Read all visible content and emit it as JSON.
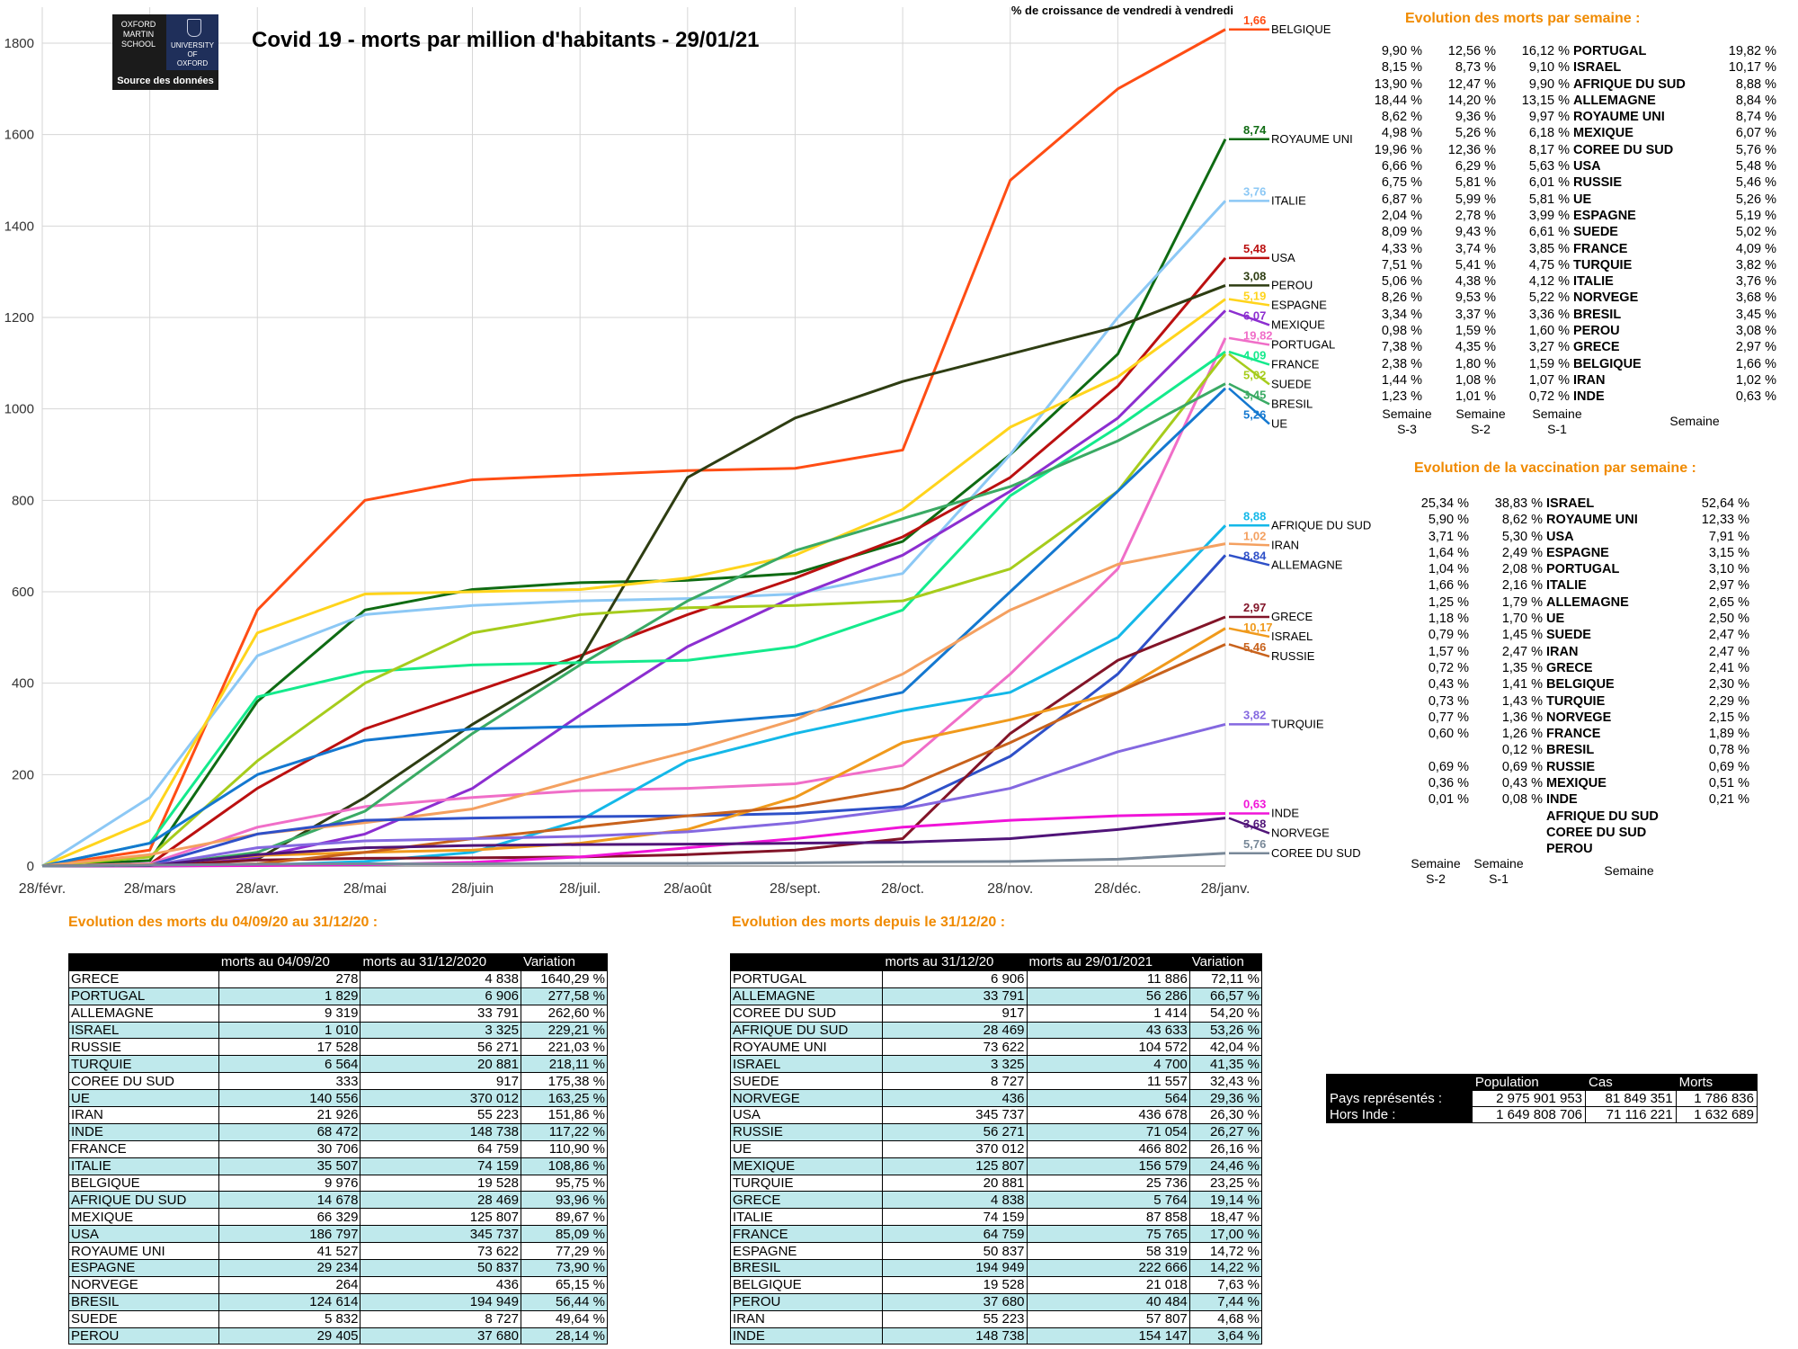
{
  "chart_data": {
    "type": "line",
    "title": "Covid 19 - morts par million d'habitants - 29/01/21",
    "corner_note": "% de croissance de vendredi à vendredi",
    "x_ticks": [
      "28/févr.",
      "28/mars",
      "28/avr.",
      "28/mai",
      "28/juin",
      "28/juil.",
      "28/août",
      "28/sept.",
      "28/oct.",
      "28/nov.",
      "28/déc.",
      "28/janv."
    ],
    "ylim": [
      0,
      1800
    ],
    "y_ticks": [
      0,
      200,
      400,
      600,
      800,
      1000,
      1200,
      1400,
      1600,
      1800
    ],
    "grid": true,
    "series": [
      {
        "name": "BELGIQUE",
        "pct": "1,66",
        "color": "#ff4d14",
        "values": [
          0,
          35,
          560,
          800,
          845,
          855,
          865,
          870,
          910,
          1500,
          1700,
          1830
        ]
      },
      {
        "name": "ROYAUME UNI",
        "pct": "8,74",
        "color": "#0f6b13",
        "values": [
          0,
          12,
          360,
          560,
          605,
          620,
          625,
          640,
          710,
          900,
          1120,
          1590
        ]
      },
      {
        "name": "ITALIE",
        "pct": "3,76",
        "color": "#8cc8f5",
        "values": [
          0,
          150,
          460,
          550,
          570,
          580,
          585,
          595,
          640,
          900,
          1200,
          1455
        ]
      },
      {
        "name": "USA",
        "pct": "5,48",
        "color": "#bb1010",
        "values": [
          0,
          4,
          170,
          300,
          380,
          460,
          550,
          630,
          720,
          850,
          1050,
          1330
        ]
      },
      {
        "name": "PEROU",
        "pct": "3,08",
        "color": "#2e3d12",
        "values": [
          0,
          0,
          15,
          150,
          310,
          450,
          850,
          980,
          1060,
          1120,
          1180,
          1270
        ]
      },
      {
        "name": "ESPAGNE",
        "pct": "5,19",
        "color": "#ffd41c",
        "values": [
          0,
          100,
          510,
          595,
          600,
          605,
          630,
          680,
          780,
          960,
          1070,
          1240
        ]
      },
      {
        "name": "MEXIQUE",
        "pct": "6,07",
        "color": "#8c2ed0",
        "values": [
          0,
          0,
          20,
          70,
          170,
          330,
          480,
          590,
          680,
          820,
          980,
          1215
        ]
      },
      {
        "name": "PORTUGAL",
        "pct": "19,82",
        "color": "#f06ec8",
        "values": [
          0,
          5,
          85,
          130,
          150,
          165,
          170,
          180,
          220,
          420,
          650,
          1155
        ]
      },
      {
        "name": "FRANCE",
        "pct": "4,09",
        "color": "#14ea8c",
        "values": [
          0,
          50,
          370,
          425,
          440,
          445,
          450,
          480,
          560,
          810,
          960,
          1125
        ]
      },
      {
        "name": "SUEDE",
        "pct": "5,02",
        "color": "#a6cc1c",
        "values": [
          0,
          20,
          230,
          400,
          510,
          550,
          565,
          570,
          580,
          650,
          820,
          1120
        ]
      },
      {
        "name": "BRESIL",
        "pct": "3,45",
        "color": "#3aaa64",
        "values": [
          0,
          0,
          30,
          120,
          290,
          440,
          580,
          690,
          760,
          830,
          930,
          1055
        ]
      },
      {
        "name": "UE",
        "pct": "5,26",
        "color": "#1478d0",
        "values": [
          0,
          50,
          200,
          275,
          300,
          305,
          310,
          330,
          380,
          600,
          820,
          1045
        ]
      },
      {
        "name": "AFRIQUE DU SUD",
        "pct": "8,88",
        "color": "#14b8e8",
        "values": [
          0,
          0,
          2,
          10,
          30,
          100,
          230,
          290,
          340,
          380,
          500,
          745
        ]
      },
      {
        "name": "IRAN",
        "pct": "1,02",
        "color": "#f4a060",
        "values": [
          0,
          25,
          70,
          95,
          125,
          190,
          250,
          320,
          420,
          560,
          660,
          705
        ]
      },
      {
        "name": "ALLEMAGNE",
        "pct": "8,84",
        "color": "#2e50c8",
        "values": [
          0,
          2,
          70,
          100,
          105,
          108,
          110,
          115,
          130,
          240,
          420,
          680
        ]
      },
      {
        "name": "GRECE",
        "pct": "2,97",
        "color": "#821428",
        "values": [
          0,
          1,
          13,
          17,
          18,
          20,
          25,
          35,
          60,
          290,
          450,
          545
        ]
      },
      {
        "name": "ISRAEL",
        "pct": "10,17",
        "color": "#f09a1c",
        "values": [
          0,
          3,
          23,
          30,
          35,
          50,
          80,
          150,
          270,
          320,
          380,
          520
        ]
      },
      {
        "name": "RUSSIE",
        "pct": "5,46",
        "color": "#c8621c",
        "values": [
          0,
          0,
          5,
          30,
          60,
          85,
          110,
          130,
          170,
          270,
          380,
          485
        ]
      },
      {
        "name": "TURQUIE",
        "pct": "3,82",
        "color": "#8468e0",
        "values": [
          0,
          1,
          40,
          55,
          60,
          65,
          75,
          95,
          125,
          170,
          250,
          310
        ]
      },
      {
        "name": "INDE",
        "pct": "0,63",
        "color": "#f014d8",
        "values": [
          0,
          0,
          1,
          3,
          8,
          20,
          40,
          60,
          85,
          100,
          110,
          115
        ]
      },
      {
        "name": "NORVEGE",
        "pct": "3,68",
        "color": "#501478",
        "values": [
          0,
          1,
          25,
          40,
          45,
          47,
          48,
          50,
          52,
          60,
          80,
          105
        ]
      },
      {
        "name": "COREE DU SUD",
        "pct": "5,76",
        "color": "#788898",
        "values": [
          0,
          2,
          4,
          5,
          5,
          6,
          6,
          7,
          9,
          10,
          15,
          28
        ]
      }
    ]
  },
  "logo": {
    "line1": "OXFORD",
    "line2": "MARTIN",
    "line3": "SCHOOL",
    "univ1": "UNIVERSITY OF",
    "univ2": "OXFORD",
    "source": "Source des données"
  },
  "weekly_deaths": {
    "title": "Evolution des morts par semaine :",
    "rows": [
      {
        "s3": "9,90 %",
        "s2": "12,56 %",
        "s1": "16,12 %",
        "name": "PORTUGAL",
        "w": "19,82 %"
      },
      {
        "s3": "8,15 %",
        "s2": "8,73 %",
        "s1": "9,10 %",
        "name": "ISRAEL",
        "w": "10,17 %"
      },
      {
        "s3": "13,90 %",
        "s2": "12,47 %",
        "s1": "9,90 %",
        "name": "AFRIQUE DU SUD",
        "w": "8,88 %"
      },
      {
        "s3": "18,44 %",
        "s2": "14,20 %",
        "s1": "13,15 %",
        "name": "ALLEMAGNE",
        "w": "8,84 %"
      },
      {
        "s3": "8,62 %",
        "s2": "9,36 %",
        "s1": "9,97 %",
        "name": "ROYAUME UNI",
        "w": "8,74 %"
      },
      {
        "s3": "4,98 %",
        "s2": "5,26 %",
        "s1": "6,18 %",
        "name": "MEXIQUE",
        "w": "6,07 %"
      },
      {
        "s3": "19,96 %",
        "s2": "12,36 %",
        "s1": "8,17 %",
        "name": "COREE DU SUD",
        "w": "5,76 %"
      },
      {
        "s3": "6,66 %",
        "s2": "6,29 %",
        "s1": "5,63 %",
        "name": "USA",
        "w": "5,48 %"
      },
      {
        "s3": "6,75 %",
        "s2": "5,81 %",
        "s1": "6,01 %",
        "name": "RUSSIE",
        "w": "5,46 %"
      },
      {
        "s3": "6,87 %",
        "s2": "5,99 %",
        "s1": "5,81 %",
        "name": "UE",
        "w": "5,26 %"
      },
      {
        "s3": "2,04 %",
        "s2": "2,78 %",
        "s1": "3,99 %",
        "name": "ESPAGNE",
        "w": "5,19 %"
      },
      {
        "s3": "8,09 %",
        "s2": "9,43 %",
        "s1": "6,61 %",
        "name": "SUEDE",
        "w": "5,02 %"
      },
      {
        "s3": "4,33 %",
        "s2": "3,74 %",
        "s1": "3,85 %",
        "name": "FRANCE",
        "w": "4,09 %"
      },
      {
        "s3": "7,51 %",
        "s2": "5,41 %",
        "s1": "4,75 %",
        "name": "TURQUIE",
        "w": "3,82 %"
      },
      {
        "s3": "5,06 %",
        "s2": "4,38 %",
        "s1": "4,12 %",
        "name": "ITALIE",
        "w": "3,76 %"
      },
      {
        "s3": "8,26 %",
        "s2": "9,53 %",
        "s1": "5,22 %",
        "name": "NORVEGE",
        "w": "3,68 %"
      },
      {
        "s3": "3,34 %",
        "s2": "3,37 %",
        "s1": "3,36 %",
        "name": "BRESIL",
        "w": "3,45 %"
      },
      {
        "s3": "0,98 %",
        "s2": "1,59 %",
        "s1": "1,60 %",
        "name": "PEROU",
        "w": "3,08 %"
      },
      {
        "s3": "7,38 %",
        "s2": "4,35 %",
        "s1": "3,27 %",
        "name": "GRECE",
        "w": "2,97 %"
      },
      {
        "s3": "2,38 %",
        "s2": "1,80 %",
        "s1": "1,59 %",
        "name": "BELGIQUE",
        "w": "1,66 %"
      },
      {
        "s3": "1,44 %",
        "s2": "1,08 %",
        "s1": "1,07 %",
        "name": "IRAN",
        "w": "1,02 %"
      },
      {
        "s3": "1,23 %",
        "s2": "1,01 %",
        "s1": "0,72 %",
        "name": "INDE",
        "w": "0,63 %"
      }
    ],
    "footer": {
      "semaine": "Semaine",
      "s3": "S-3",
      "s2": "S-2",
      "s1": "S-1"
    }
  },
  "weekly_vacc": {
    "title": "Evolution de la vaccination par semaine :",
    "rows": [
      {
        "s2": "25,34 %",
        "s1": "38,83 %",
        "name": "ISRAEL",
        "w": "52,64 %"
      },
      {
        "s2": "5,90 %",
        "s1": "8,62 %",
        "name": "ROYAUME UNI",
        "w": "12,33 %"
      },
      {
        "s2": "3,71 %",
        "s1": "5,30 %",
        "name": "USA",
        "w": "7,91 %"
      },
      {
        "s2": "1,64 %",
        "s1": "2,49 %",
        "name": "ESPAGNE",
        "w": "3,15 %"
      },
      {
        "s2": "1,04 %",
        "s1": "2,08 %",
        "name": "PORTUGAL",
        "w": "3,10 %"
      },
      {
        "s2": "1,66 %",
        "s1": "2,16 %",
        "name": "ITALIE",
        "w": "2,97 %"
      },
      {
        "s2": "1,25 %",
        "s1": "1,79 %",
        "name": "ALLEMAGNE",
        "w": "2,65 %"
      },
      {
        "s2": "1,18 %",
        "s1": "1,70 %",
        "name": "UE",
        "w": "2,50 %"
      },
      {
        "s2": "0,79 %",
        "s1": "1,45 %",
        "name": "SUEDE",
        "w": "2,47 %"
      },
      {
        "s2": "1,57 %",
        "s1": "2,47 %",
        "name": "IRAN",
        "w": "2,47 %"
      },
      {
        "s2": "0,72 %",
        "s1": "1,35 %",
        "name": "GRECE",
        "w": "2,41 %"
      },
      {
        "s2": "0,43 %",
        "s1": "1,41 %",
        "name": "BELGIQUE",
        "w": "2,30 %"
      },
      {
        "s2": "0,73 %",
        "s1": "1,43 %",
        "name": "TURQUIE",
        "w": "2,29 %"
      },
      {
        "s2": "0,77 %",
        "s1": "1,36 %",
        "name": "NORVEGE",
        "w": "2,15 %"
      },
      {
        "s2": "0,60 %",
        "s1": "1,26 %",
        "name": "FRANCE",
        "w": "1,89 %"
      },
      {
        "s2": "",
        "s1": "0,12 %",
        "name": "BRESIL",
        "w": "0,78 %"
      },
      {
        "s2": "0,69 %",
        "s1": "0,69 %",
        "name": "RUSSIE",
        "w": "0,69 %"
      },
      {
        "s2": "0,36 %",
        "s1": "0,43 %",
        "name": "MEXIQUE",
        "w": "0,51 %"
      },
      {
        "s2": "0,01 %",
        "s1": "0,08 %",
        "name": "INDE",
        "w": "0,21 %"
      },
      {
        "s2": "",
        "s1": "",
        "name": "AFRIQUE DU SUD",
        "w": ""
      },
      {
        "s2": "",
        "s1": "",
        "name": "COREE DU SUD",
        "w": ""
      },
      {
        "s2": "",
        "s1": "",
        "name": "PEROU",
        "w": ""
      }
    ],
    "footer": {
      "semaine": "Semaine",
      "s2": "S-2",
      "s1": "S-1"
    }
  },
  "table1": {
    "title": "Evolution des morts du 04/09/20 au 31/12/20 :",
    "headers": [
      "",
      "morts au 04/09/20",
      "morts  au 31/12/2020",
      "Variation"
    ],
    "rows": [
      [
        "GRECE",
        "278",
        "4 838",
        "1640,29 %"
      ],
      [
        "PORTUGAL",
        "1 829",
        "6 906",
        "277,58 %"
      ],
      [
        "ALLEMAGNE",
        "9 319",
        "33 791",
        "262,60 %"
      ],
      [
        "ISRAEL",
        "1 010",
        "3 325",
        "229,21 %"
      ],
      [
        "RUSSIE",
        "17 528",
        "56 271",
        "221,03 %"
      ],
      [
        "TURQUIE",
        "6 564",
        "20 881",
        "218,11 %"
      ],
      [
        "COREE DU SUD",
        "333",
        "917",
        "175,38 %"
      ],
      [
        "UE",
        "140 556",
        "370 012",
        "163,25 %"
      ],
      [
        "IRAN",
        "21 926",
        "55 223",
        "151,86 %"
      ],
      [
        "INDE",
        "68 472",
        "148 738",
        "117,22 %"
      ],
      [
        "FRANCE",
        "30 706",
        "64 759",
        "110,90 %"
      ],
      [
        "ITALIE",
        "35 507",
        "74 159",
        "108,86 %"
      ],
      [
        "BELGIQUE",
        "9 976",
        "19 528",
        "95,75 %"
      ],
      [
        "AFRIQUE DU SUD",
        "14 678",
        "28 469",
        "93,96 %"
      ],
      [
        "MEXIQUE",
        "66 329",
        "125 807",
        "89,67 %"
      ],
      [
        "USA",
        "186 797",
        "345 737",
        "85,09 %"
      ],
      [
        "ROYAUME UNI",
        "41 527",
        "73 622",
        "77,29 %"
      ],
      [
        "ESPAGNE",
        "29 234",
        "50 837",
        "73,90 %"
      ],
      [
        "NORVEGE",
        "264",
        "436",
        "65,15 %"
      ],
      [
        "BRESIL",
        "124 614",
        "194 949",
        "56,44 %"
      ],
      [
        "SUEDE",
        "5 832",
        "8 727",
        "49,64 %"
      ],
      [
        "PEROU",
        "29 405",
        "37 680",
        "28,14 %"
      ]
    ]
  },
  "table2": {
    "title": "Evolution des morts depuis le 31/12/20 :",
    "headers": [
      "",
      "morts au 31/12/20",
      "morts  au 29/01/2021",
      "Variation"
    ],
    "rows": [
      [
        "PORTUGAL",
        "6 906",
        "11 886",
        "72,11 %"
      ],
      [
        "ALLEMAGNE",
        "33 791",
        "56 286",
        "66,57 %"
      ],
      [
        "COREE DU SUD",
        "917",
        "1 414",
        "54,20 %"
      ],
      [
        "AFRIQUE DU SUD",
        "28 469",
        "43 633",
        "53,26 %"
      ],
      [
        "ROYAUME UNI",
        "73 622",
        "104 572",
        "42,04 %"
      ],
      [
        "ISRAEL",
        "3 325",
        "4 700",
        "41,35 %"
      ],
      [
        "SUEDE",
        "8 727",
        "11 557",
        "32,43 %"
      ],
      [
        "NORVEGE",
        "436",
        "564",
        "29,36 %"
      ],
      [
        "USA",
        "345 737",
        "436 678",
        "26,30 %"
      ],
      [
        "RUSSIE",
        "56 271",
        "71 054",
        "26,27 %"
      ],
      [
        "UE",
        "370 012",
        "466 802",
        "26,16 %"
      ],
      [
        "MEXIQUE",
        "125 807",
        "156 579",
        "24,46 %"
      ],
      [
        "TURQUIE",
        "20 881",
        "25 736",
        "23,25 %"
      ],
      [
        "GRECE",
        "4 838",
        "5 764",
        "19,14 %"
      ],
      [
        "ITALIE",
        "74 159",
        "87 858",
        "18,47 %"
      ],
      [
        "FRANCE",
        "64 759",
        "75 765",
        "17,00 %"
      ],
      [
        "ESPAGNE",
        "50 837",
        "58 319",
        "14,72 %"
      ],
      [
        "BRESIL",
        "194 949",
        "222 666",
        "14,22 %"
      ],
      [
        "BELGIQUE",
        "19 528",
        "21 018",
        "7,63 %"
      ],
      [
        "PEROU",
        "37 680",
        "40 484",
        "7,44 %"
      ],
      [
        "IRAN",
        "55 223",
        "57 807",
        "4,68 %"
      ],
      [
        "INDE",
        "148 738",
        "154 147",
        "3,64 %"
      ]
    ]
  },
  "summary": {
    "headers": [
      "",
      "Population",
      "Cas",
      "Morts"
    ],
    "rows": [
      [
        "Pays représentés :",
        "2 975 901 953",
        "81 849 351",
        "1 786 836"
      ],
      [
        "Hors Inde :",
        "1 649 808 706",
        "71 116 221",
        "1 632 689"
      ]
    ]
  }
}
